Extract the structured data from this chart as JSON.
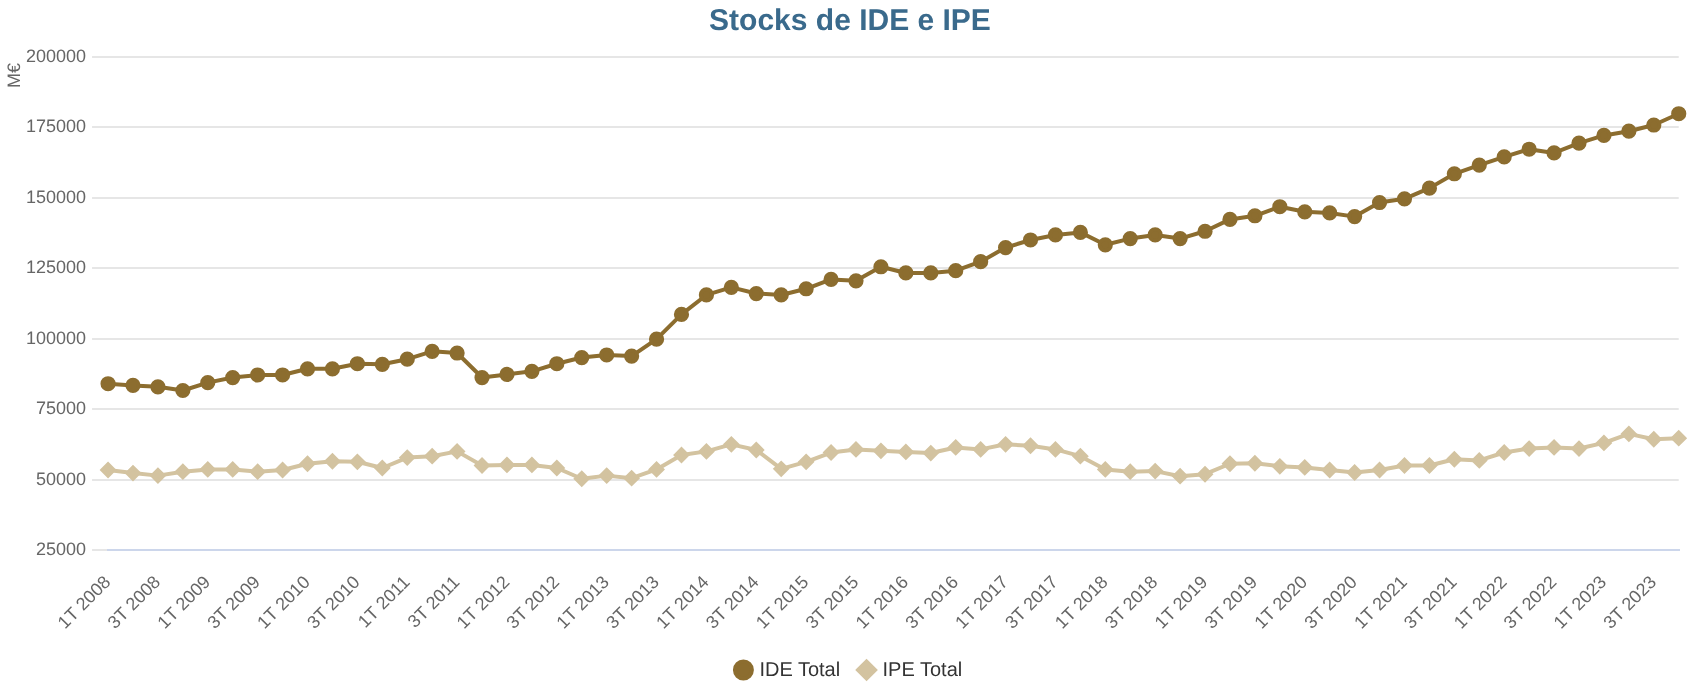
{
  "chart_data": {
    "type": "line",
    "title": "Stocks de IDE e IPE",
    "ylabel": "M€",
    "categories": [
      "1T 2008",
      null,
      "3T 2008",
      null,
      "1T 2009",
      null,
      "3T 2009",
      null,
      "1T 2010",
      null,
      "3T 2010",
      null,
      "1T 2011",
      null,
      "3T 2011",
      null,
      "1T 2012",
      null,
      "3T 2012",
      null,
      "1T 2013",
      null,
      "3T 2013",
      null,
      "1T 2014",
      null,
      "3T 2014",
      null,
      "1T 2015",
      null,
      "3T 2015",
      null,
      "1T 2016",
      null,
      "3T 2016",
      null,
      "1T 2017",
      null,
      "3T 2017",
      null,
      "1T 2018",
      null,
      "3T 2018",
      null,
      "1T 2019",
      null,
      "3T 2019",
      null,
      "1T 2020",
      null,
      "3T 2020",
      null,
      "1T 2021",
      null,
      "3T 2021",
      null,
      "1T 2022",
      null,
      "3T 2022",
      null,
      "1T 2023",
      null,
      "3T 2023",
      null
    ],
    "series": [
      {
        "name": "IDE Total",
        "color": "#8c6d2f",
        "marker": "circle",
        "values": [
          84000,
          83400,
          82900,
          81600,
          84400,
          86200,
          87100,
          87100,
          89300,
          89300,
          91100,
          90900,
          92700,
          95500,
          94900,
          86200,
          87300,
          88400,
          91100,
          93300,
          94200,
          93800,
          99800,
          108600,
          115500,
          118200,
          116000,
          115500,
          117700,
          121000,
          120500,
          125500,
          123300,
          123300,
          124100,
          127300,
          132300,
          135000,
          136800,
          137700,
          133300,
          135500,
          136800,
          135500,
          138100,
          142300,
          143600,
          146800,
          145000,
          144600,
          143300,
          148300,
          149600,
          153400,
          158500,
          161600,
          164500,
          167200,
          165900,
          169400,
          172100,
          173600,
          175800,
          179800
        ]
      },
      {
        "name": "IPE Total",
        "color": "#d3c3a0",
        "marker": "diamond",
        "values": [
          53400,
          52300,
          51400,
          52800,
          53600,
          53600,
          52800,
          53400,
          55600,
          56500,
          56300,
          54100,
          57800,
          58300,
          60000,
          55000,
          55200,
          55200,
          54100,
          50300,
          51400,
          50500,
          53600,
          58700,
          60000,
          62500,
          60500,
          53800,
          56300,
          59600,
          60700,
          60200,
          59800,
          59400,
          61400,
          60700,
          62500,
          62000,
          60700,
          58300,
          53600,
          52800,
          53000,
          51200,
          51900,
          55600,
          55800,
          54700,
          54300,
          53400,
          52500,
          53400,
          55000,
          55000,
          57200,
          56800,
          59600,
          61000,
          61400,
          61000,
          63000,
          66200,
          64300,
          64700
        ]
      }
    ],
    "ylim": [
      25000,
      200000
    ],
    "yticks": [
      25000,
      50000,
      75000,
      100000,
      125000,
      150000,
      175000,
      200000
    ],
    "grid": "y",
    "legend": "bottom",
    "line_style": "solid"
  }
}
